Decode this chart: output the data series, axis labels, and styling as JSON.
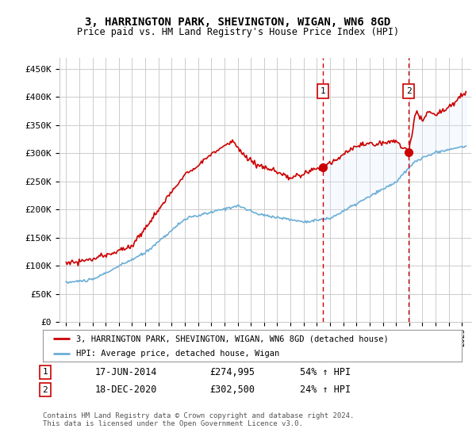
{
  "title": "3, HARRINGTON PARK, SHEVINGTON, WIGAN, WN6 8GD",
  "subtitle": "Price paid vs. HM Land Registry's House Price Index (HPI)",
  "ylim": [
    0,
    470000
  ],
  "yticks": [
    0,
    50000,
    100000,
    150000,
    200000,
    250000,
    300000,
    350000,
    400000,
    450000
  ],
  "ytick_labels": [
    "£0",
    "£50K",
    "£100K",
    "£150K",
    "£200K",
    "£250K",
    "£300K",
    "£350K",
    "£400K",
    "£450K"
  ],
  "sale1_date": 2014.46,
  "sale1_price": 274995,
  "sale2_date": 2020.96,
  "sale2_price": 302500,
  "legend_line1": "3, HARRINGTON PARK, SHEVINGTON, WIGAN, WN6 8GD (detached house)",
  "legend_line2": "HPI: Average price, detached house, Wigan",
  "annot1_num": "1",
  "annot1_date": "17-JUN-2014",
  "annot1_price": "£274,995",
  "annot1_hpi": "54% ↑ HPI",
  "annot2_num": "2",
  "annot2_date": "18-DEC-2020",
  "annot2_price": "£302,500",
  "annot2_hpi": "24% ↑ HPI",
  "footer": "Contains HM Land Registry data © Crown copyright and database right 2024.\nThis data is licensed under the Open Government Licence v3.0.",
  "red_color": "#cc0000",
  "blue_color": "#6baed6",
  "shade_color": "#ddeeff",
  "background_color": "#ffffff",
  "grid_color": "#cccccc"
}
